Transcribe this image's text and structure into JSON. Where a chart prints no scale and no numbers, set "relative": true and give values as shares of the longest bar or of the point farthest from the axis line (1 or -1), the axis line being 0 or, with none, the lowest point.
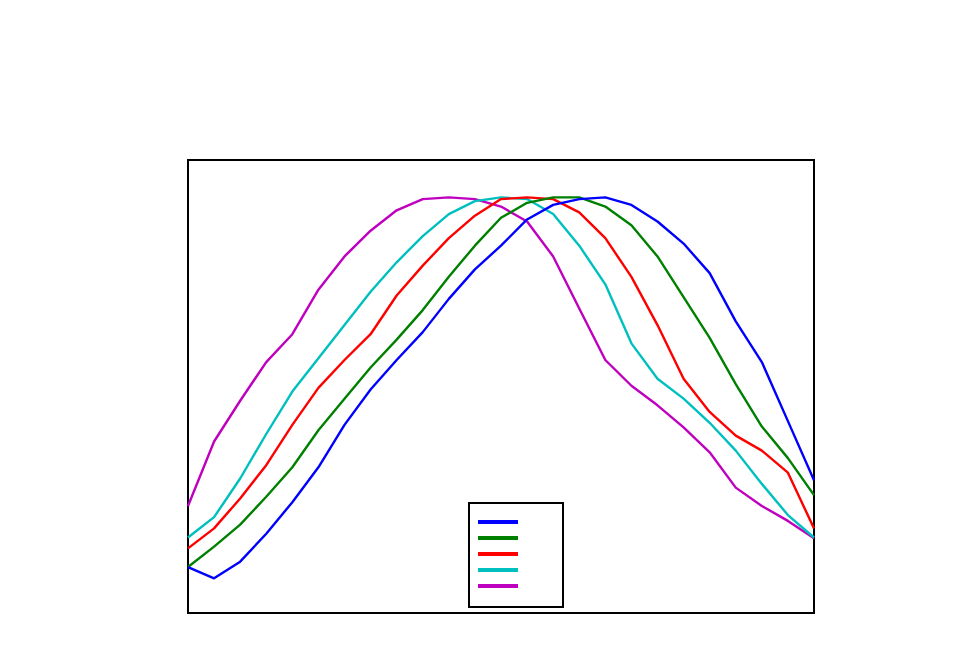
{
  "chart_data": {
    "type": "line",
    "relative": true,
    "legend": false,
    "marker": "none",
    "line_style": "solid",
    "grid": false,
    "categories": [
      null,
      null,
      null,
      null,
      null,
      null,
      null,
      null,
      null,
      null,
      null,
      null,
      null,
      null,
      null,
      null,
      null,
      null,
      null,
      null,
      null,
      null,
      null,
      null,
      null
    ],
    "series": [
      {
        "color": "#0000ff",
        "values": [
          0.111,
          0.084,
          0.124,
          0.191,
          0.267,
          0.351,
          0.453,
          0.538,
          0.609,
          0.676,
          0.756,
          0.827,
          0.884,
          0.947,
          0.982,
          0.996,
          1,
          0.982,
          0.942,
          0.889,
          0.818,
          0.702,
          0.604,
          0.462,
          0.32
        ]
      },
      {
        "color": "#008000",
        "values": [
          0.111,
          0.16,
          0.213,
          0.28,
          0.351,
          0.44,
          0.516,
          0.591,
          0.658,
          0.729,
          0.809,
          0.884,
          0.951,
          0.987,
          1,
          1,
          0.978,
          0.933,
          0.858,
          0.76,
          0.662,
          0.551,
          0.449,
          0.373,
          0.284
        ]
      },
      {
        "color": "#ff0000",
        "values": [
          0.156,
          0.204,
          0.276,
          0.356,
          0.453,
          0.542,
          0.609,
          0.671,
          0.764,
          0.836,
          0.902,
          0.956,
          0.996,
          1,
          0.996,
          0.964,
          0.902,
          0.809,
          0.693,
          0.564,
          0.484,
          0.427,
          0.391,
          0.338,
          0.204
        ]
      },
      {
        "color": "#00bfbf",
        "values": [
          0.182,
          0.231,
          0.324,
          0.431,
          0.533,
          0.613,
          0.693,
          0.773,
          0.844,
          0.907,
          0.96,
          0.991,
          1,
          0.996,
          0.96,
          0.884,
          0.791,
          0.649,
          0.564,
          0.516,
          0.458,
          0.391,
          0.311,
          0.236,
          0.182
        ]
      },
      {
        "color": "#bf00bf",
        "values": [
          0.258,
          0.413,
          0.511,
          0.604,
          0.671,
          0.778,
          0.858,
          0.92,
          0.969,
          0.996,
          1,
          0.996,
          0.978,
          0.942,
          0.858,
          0.733,
          0.609,
          0.547,
          0.5,
          0.447,
          0.387,
          0.302,
          0.258,
          0.222,
          0.18
        ]
      }
    ]
  }
}
